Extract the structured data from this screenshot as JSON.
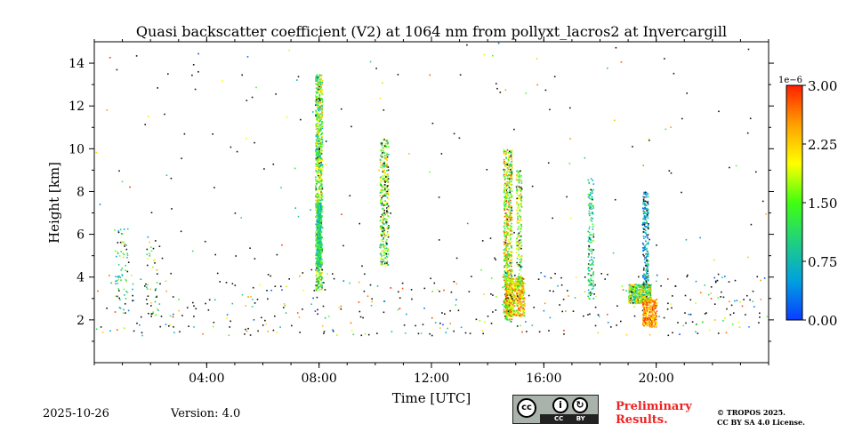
{
  "chart_data": {
    "type": "heatmap",
    "title": "Quasi backscatter coefficient (V2) at 1064 nm from pollyxt_lacros2 at Invercargill",
    "xlabel": "Time [UTC]",
    "ylabel": "Height [km]",
    "xlim_hours": [
      0,
      24
    ],
    "ylim": [
      0,
      15
    ],
    "x_ticks": [
      {
        "v": 4,
        "label": "04:00"
      },
      {
        "v": 8,
        "label": "08:00"
      },
      {
        "v": 12,
        "label": "12:00"
      },
      {
        "v": 16,
        "label": "16:00"
      },
      {
        "v": 20,
        "label": "20:00"
      }
    ],
    "y_ticks": [
      {
        "v": 2,
        "label": "2"
      },
      {
        "v": 4,
        "label": "4"
      },
      {
        "v": 6,
        "label": "6"
      },
      {
        "v": 8,
        "label": "8"
      },
      {
        "v": 10,
        "label": "10"
      },
      {
        "v": 12,
        "label": "12"
      },
      {
        "v": 14,
        "label": "14"
      }
    ],
    "colorbar": {
      "range": [
        0,
        3e-06
      ],
      "exponent_label": "1e−6",
      "ticks": [
        {
          "v": 0,
          "label": "0.00"
        },
        {
          "v": 0.75,
          "label": "0.75"
        },
        {
          "v": 1.5,
          "label": "1.50"
        },
        {
          "v": 2.25,
          "label": "2.25"
        },
        {
          "v": 3.0,
          "label": "3.00"
        }
      ],
      "colors": [
        "#0a3cff",
        "#00a0e0",
        "#20d080",
        "#40ff10",
        "#ffff00",
        "#ffa000",
        "#ff2000"
      ]
    },
    "signal_regions": [
      {
        "t0": 0,
        "t1": 24,
        "h0": 1.3,
        "h1": 4.2,
        "n": 420,
        "v0": 0,
        "v1": 3,
        "black": 0.55
      },
      {
        "t0": 0,
        "t1": 24,
        "h0": 4,
        "h1": 15,
        "n": 170,
        "v0": 0,
        "v1": 3,
        "black": 0.6
      },
      {
        "t0": 0.7,
        "t1": 1.2,
        "h0": 2.5,
        "h1": 6.3,
        "n": 60,
        "v0": 0.4,
        "v1": 1.8,
        "black": 0.2
      },
      {
        "t0": 1.8,
        "t1": 2.3,
        "h0": 2,
        "h1": 6,
        "n": 40,
        "v0": 0.4,
        "v1": 2.5,
        "black": 0.3
      },
      {
        "t0": 7.85,
        "t1": 8.1,
        "h0": 3.4,
        "h1": 13.5,
        "n": 900,
        "v0": 0.6,
        "v1": 2.4,
        "black": 0.05
      },
      {
        "t0": 7.9,
        "t1": 8.05,
        "h0": 4.5,
        "h1": 7.5,
        "n": 400,
        "v0": 0.5,
        "v1": 1.6,
        "black": 0.0
      },
      {
        "t0": 10.15,
        "t1": 10.45,
        "h0": 4.5,
        "h1": 10.5,
        "n": 350,
        "v0": 0.8,
        "v1": 2.4,
        "black": 0.2
      },
      {
        "t0": 14.55,
        "t1": 14.85,
        "h0": 2.0,
        "h1": 10,
        "n": 650,
        "v0": 0.9,
        "v1": 2.9,
        "black": 0.05
      },
      {
        "t0": 14.6,
        "t1": 15.3,
        "h0": 2.2,
        "h1": 4,
        "n": 500,
        "v0": 1.4,
        "v1": 3,
        "black": 0.05
      },
      {
        "t0": 15.0,
        "t1": 15.2,
        "h0": 3.5,
        "h1": 9,
        "n": 200,
        "v0": 0.9,
        "v1": 2.5,
        "black": 0.1
      },
      {
        "t0": 17.55,
        "t1": 17.75,
        "h0": 3,
        "h1": 8.7,
        "n": 150,
        "v0": 0.5,
        "v1": 1.6,
        "black": 0.1
      },
      {
        "t0": 19.0,
        "t1": 19.8,
        "h0": 2.8,
        "h1": 3.7,
        "n": 450,
        "v0": 0.6,
        "v1": 2.6,
        "black": 0.05
      },
      {
        "t0": 19.5,
        "t1": 19.7,
        "h0": 3.5,
        "h1": 8,
        "n": 220,
        "v0": 0.1,
        "v1": 1.2,
        "black": 0.15
      },
      {
        "t0": 19.5,
        "t1": 20.0,
        "h0": 1.7,
        "h1": 3,
        "n": 300,
        "v0": 2.0,
        "v1": 3,
        "black": 0.0
      }
    ]
  },
  "footer": {
    "date": "2025-10-26",
    "version": "Version: 4.0",
    "license_badge": "CC BY SA",
    "preliminary_line1": "Preliminary",
    "preliminary_line2": "Results.",
    "copyright_line1": "© TROPOS 2025.",
    "copyright_line2": "CC BY SA 4.0 License."
  }
}
